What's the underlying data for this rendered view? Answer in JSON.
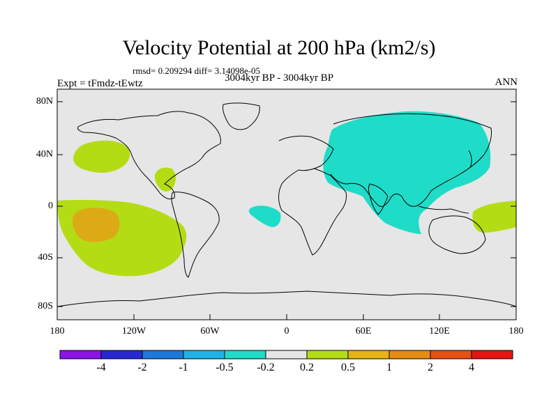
{
  "title": "Velocity Potential at 200 hPa (km2/s)",
  "stats": "rmsd= 0.209294 diff= 3.14098e-05",
  "experiment": "Expt = tFmdz-tEwtz",
  "period": "3004kyr BP - 3004kyr BP",
  "season": "ANN",
  "lat_labels": [
    "80N",
    "40N",
    "0",
    "40S",
    "80S"
  ],
  "lon_labels": [
    "180",
    "120W",
    "60W",
    "0",
    "60E",
    "120E",
    "180"
  ],
  "colorbar": {
    "colors": [
      "#8c14e6",
      "#2828d2",
      "#1e78dc",
      "#1eb4e6",
      "#1edcc8",
      "#e6e6e6",
      "#b4dc14",
      "#e6b414",
      "#e68c14",
      "#e65014",
      "#e61414"
    ],
    "labels": [
      "-4",
      "-2",
      "-1",
      "-0.5",
      "-0.2",
      "0.2",
      "0.5",
      "1",
      "2",
      "4"
    ]
  },
  "colors": {
    "background": "#e6e6e6",
    "cyan_region": "#1edcc8",
    "green_region": "#b4dc14",
    "orange_region": "#dcaa14"
  }
}
